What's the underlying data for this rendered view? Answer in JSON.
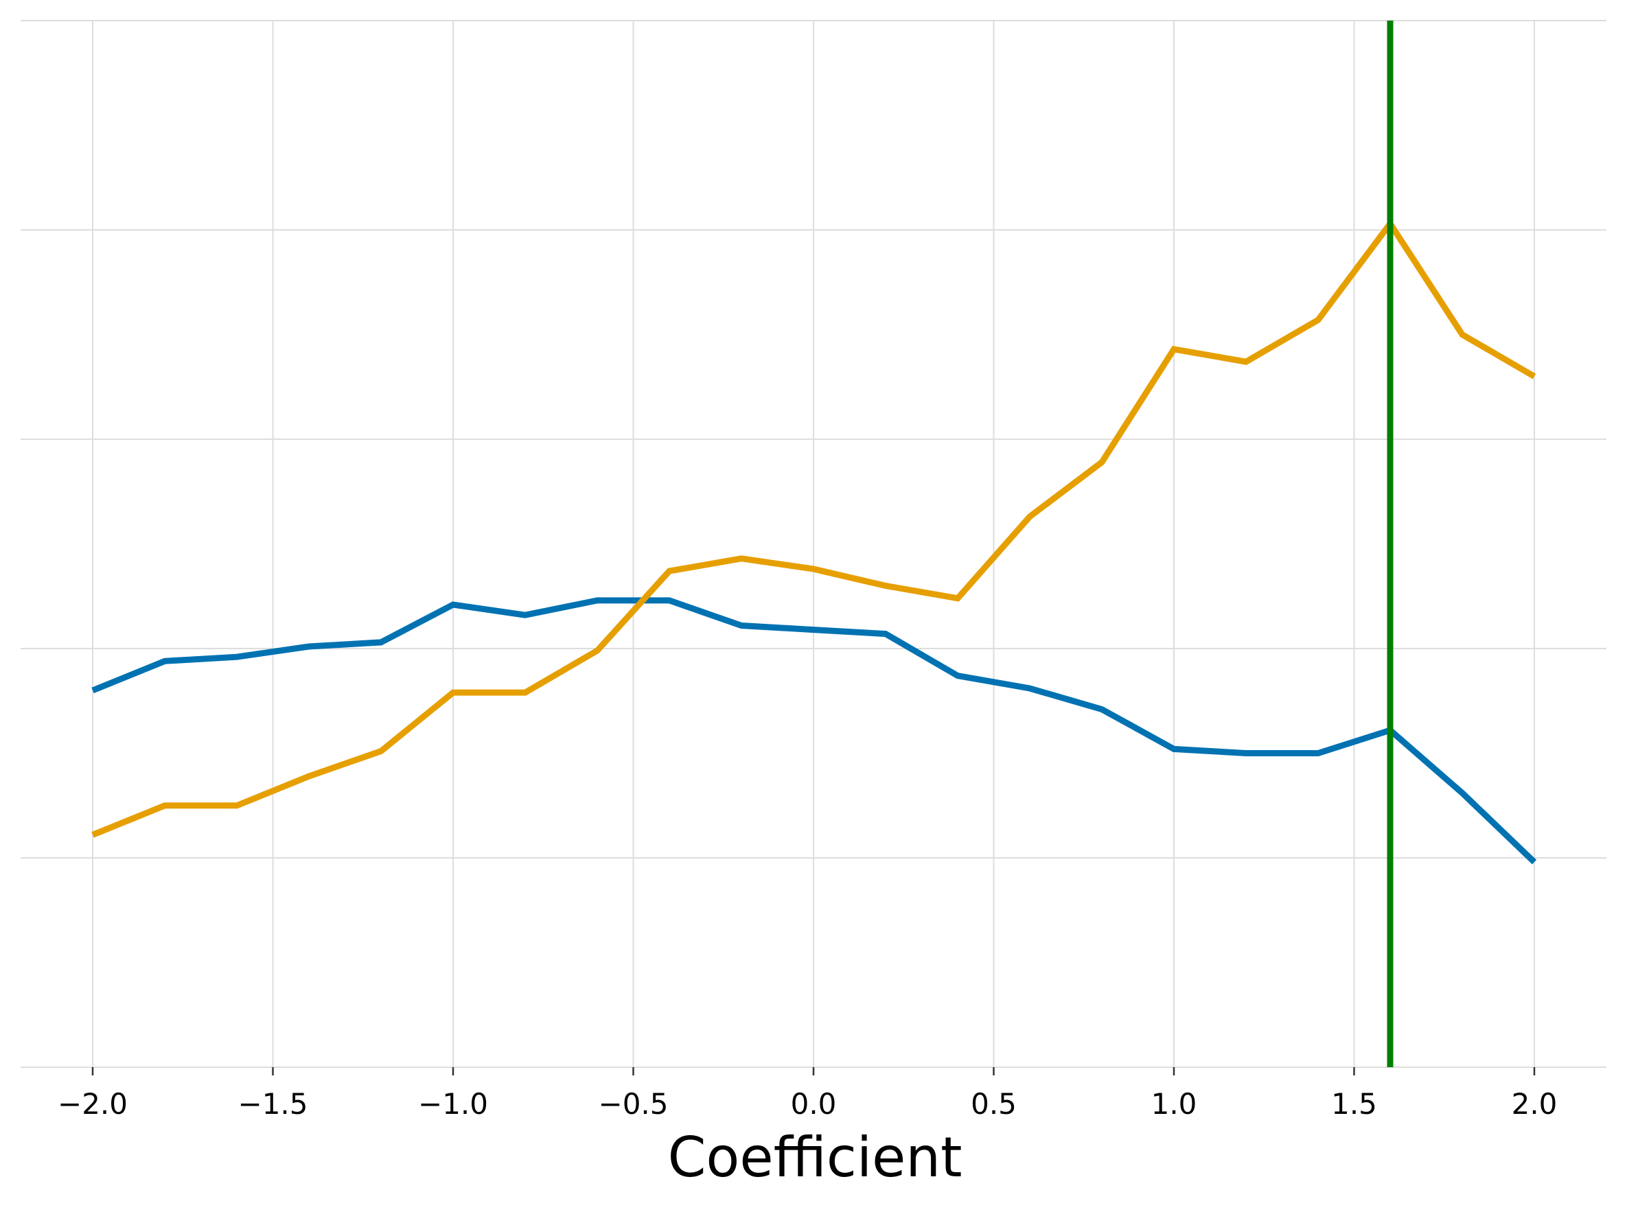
{
  "chart_data": {
    "type": "line",
    "title": "",
    "xlabel": "Coefficient",
    "ylabel": "",
    "xlim": [
      -2.2,
      2.2
    ],
    "ylim": [
      0,
      5
    ],
    "x_ticks": [
      -2.0,
      -1.5,
      -1.0,
      -0.5,
      0.0,
      0.5,
      1.0,
      1.5,
      2.0
    ],
    "x_tick_labels": [
      "−2.0",
      "−1.5",
      "−1.0",
      "−0.5",
      "0.0",
      "0.5",
      "1.0",
      "1.5",
      "2.0"
    ],
    "y_gridlines": [
      1,
      2,
      3,
      4,
      5
    ],
    "grid": true,
    "x": [
      -2.0,
      -1.8,
      -1.6,
      -1.4,
      -1.2,
      -1.0,
      -0.8,
      -0.6,
      -0.4,
      -0.2,
      0.0,
      0.2,
      0.4,
      0.6,
      0.8,
      1.0,
      1.2,
      1.4,
      1.6,
      1.8,
      2.0
    ],
    "series": [
      {
        "color": "#0072b2",
        "values": [
          1.8,
          1.94,
          1.96,
          2.01,
          2.03,
          2.21,
          2.16,
          2.23,
          2.23,
          2.11,
          2.09,
          2.07,
          1.87,
          1.81,
          1.71,
          1.52,
          1.5,
          1.5,
          1.61,
          1.31,
          0.98
        ]
      },
      {
        "color": "#e69f00",
        "values": [
          1.11,
          1.25,
          1.25,
          1.39,
          1.51,
          1.79,
          1.79,
          1.99,
          2.37,
          2.43,
          2.38,
          2.3,
          2.24,
          2.63,
          2.89,
          3.43,
          3.37,
          3.57,
          4.03,
          3.5,
          3.3
        ]
      }
    ],
    "vline": {
      "x": 1.6,
      "color": "#008000"
    }
  }
}
